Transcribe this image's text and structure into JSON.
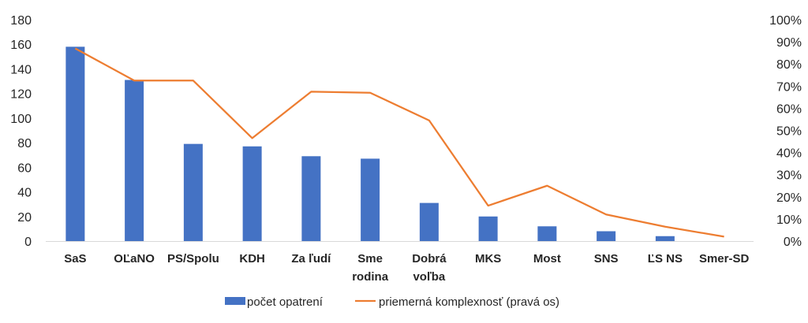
{
  "chart_data": {
    "type": "bar",
    "categories": [
      [
        "SaS"
      ],
      [
        "OĽaNO"
      ],
      [
        "PS/Spolu"
      ],
      [
        "KDH"
      ],
      [
        "Za ľudí"
      ],
      [
        "Sme",
        "rodina"
      ],
      [
        "Dobrá",
        "voľba"
      ],
      [
        "MKS"
      ],
      [
        "Most"
      ],
      [
        "SNS"
      ],
      [
        "ĽS NS"
      ],
      [
        "Smer-SD"
      ]
    ],
    "series": [
      {
        "name": "počet opatrení",
        "type": "bar",
        "axis": "left",
        "color": "#4472C4",
        "values": [
          158,
          131,
          79,
          77,
          69,
          67,
          31,
          20,
          12,
          8,
          4,
          0
        ]
      },
      {
        "name": "priemerná komplexnosť (pravá os)",
        "type": "line",
        "axis": "right",
        "color": "#ED7D31",
        "values": [
          0.87,
          0.725,
          0.725,
          0.465,
          0.675,
          0.67,
          0.545,
          0.16,
          0.25,
          0.12,
          0.065,
          0.02
        ]
      }
    ],
    "y_left": {
      "min": 0,
      "max": 180,
      "ticks": [
        0,
        20,
        40,
        60,
        80,
        100,
        120,
        140,
        160,
        180
      ],
      "tick_labels": [
        "0",
        "20",
        "40",
        "60",
        "80",
        "100",
        "120",
        "140",
        "160",
        "180"
      ]
    },
    "y_right": {
      "min": 0,
      "max": 1,
      "ticks": [
        0,
        0.1,
        0.2,
        0.3,
        0.4,
        0.5,
        0.6,
        0.7,
        0.8,
        0.9,
        1.0
      ],
      "tick_labels": [
        "0%",
        "10%",
        "20%",
        "30%",
        "40%",
        "50%",
        "60%",
        "70%",
        "80%",
        "90%",
        "100%"
      ]
    },
    "grid": false,
    "legend": "bottom-center"
  }
}
